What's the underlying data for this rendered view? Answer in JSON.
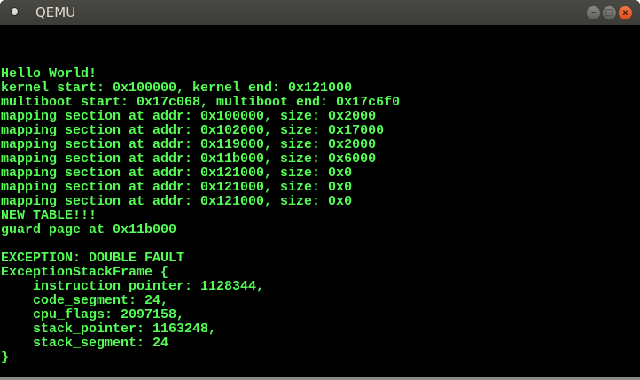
{
  "window": {
    "title": "QEMU",
    "icon": "app-icon",
    "buttons": {
      "minimize": "–",
      "maximize": "□",
      "close": "x"
    }
  },
  "colors": {
    "text": "#54fc54",
    "background": "#000000"
  },
  "terminal": {
    "lines": [
      "Hello World!",
      "kernel start: 0x100000, kernel end: 0x121000",
      "multiboot start: 0x17c068, multiboot end: 0x17c6f0",
      "mapping section at addr: 0x100000, size: 0x2000",
      "mapping section at addr: 0x102000, size: 0x17000",
      "mapping section at addr: 0x119000, size: 0x2000",
      "mapping section at addr: 0x11b000, size: 0x6000",
      "mapping section at addr: 0x121000, size: 0x0",
      "mapping section at addr: 0x121000, size: 0x0",
      "mapping section at addr: 0x121000, size: 0x0",
      "NEW TABLE!!!",
      "guard page at 0x11b000",
      "",
      "EXCEPTION: DOUBLE FAULT",
      "ExceptionStackFrame {",
      "    instruction_pointer: 1128344,",
      "    code_segment: 24,",
      "    cpu_flags: 2097158,",
      "    stack_pointer: 1163248,",
      "    stack_segment: 24",
      "}"
    ]
  }
}
